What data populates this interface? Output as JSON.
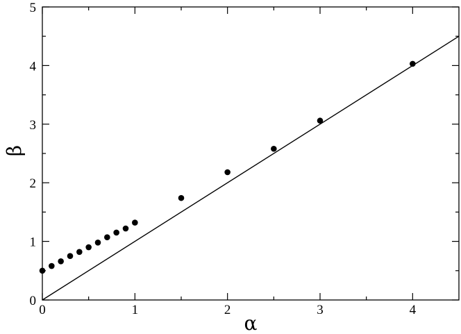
{
  "chart_data": {
    "type": "scatter",
    "xlabel": "α",
    "ylabel": "β",
    "xlim": [
      0,
      4.5
    ],
    "ylim": [
      0,
      5
    ],
    "x_ticks": [
      0,
      1,
      2,
      3,
      4
    ],
    "y_ticks": [
      0,
      1,
      2,
      3,
      4,
      5
    ],
    "x_tick_labels": [
      "0",
      "1",
      "2",
      "3",
      "4"
    ],
    "y_tick_labels": [
      "0",
      "1",
      "2",
      "3",
      "4",
      "5"
    ],
    "grid": false,
    "legend": "none",
    "series": [
      {
        "kind": "points",
        "marker": "filled-circle",
        "color": "#000000",
        "x": [
          0.0,
          0.1,
          0.2,
          0.3,
          0.4,
          0.5,
          0.6,
          0.7,
          0.8,
          0.9,
          1.0,
          1.5,
          2.0,
          2.5,
          3.0,
          4.0
        ],
        "y": [
          0.5,
          0.58,
          0.66,
          0.75,
          0.82,
          0.9,
          0.98,
          1.07,
          1.15,
          1.22,
          1.32,
          1.74,
          2.18,
          2.58,
          3.06,
          4.03
        ]
      },
      {
        "kind": "line",
        "color": "#000000",
        "x": [
          0,
          4.5
        ],
        "y": [
          0,
          4.5
        ]
      }
    ]
  }
}
